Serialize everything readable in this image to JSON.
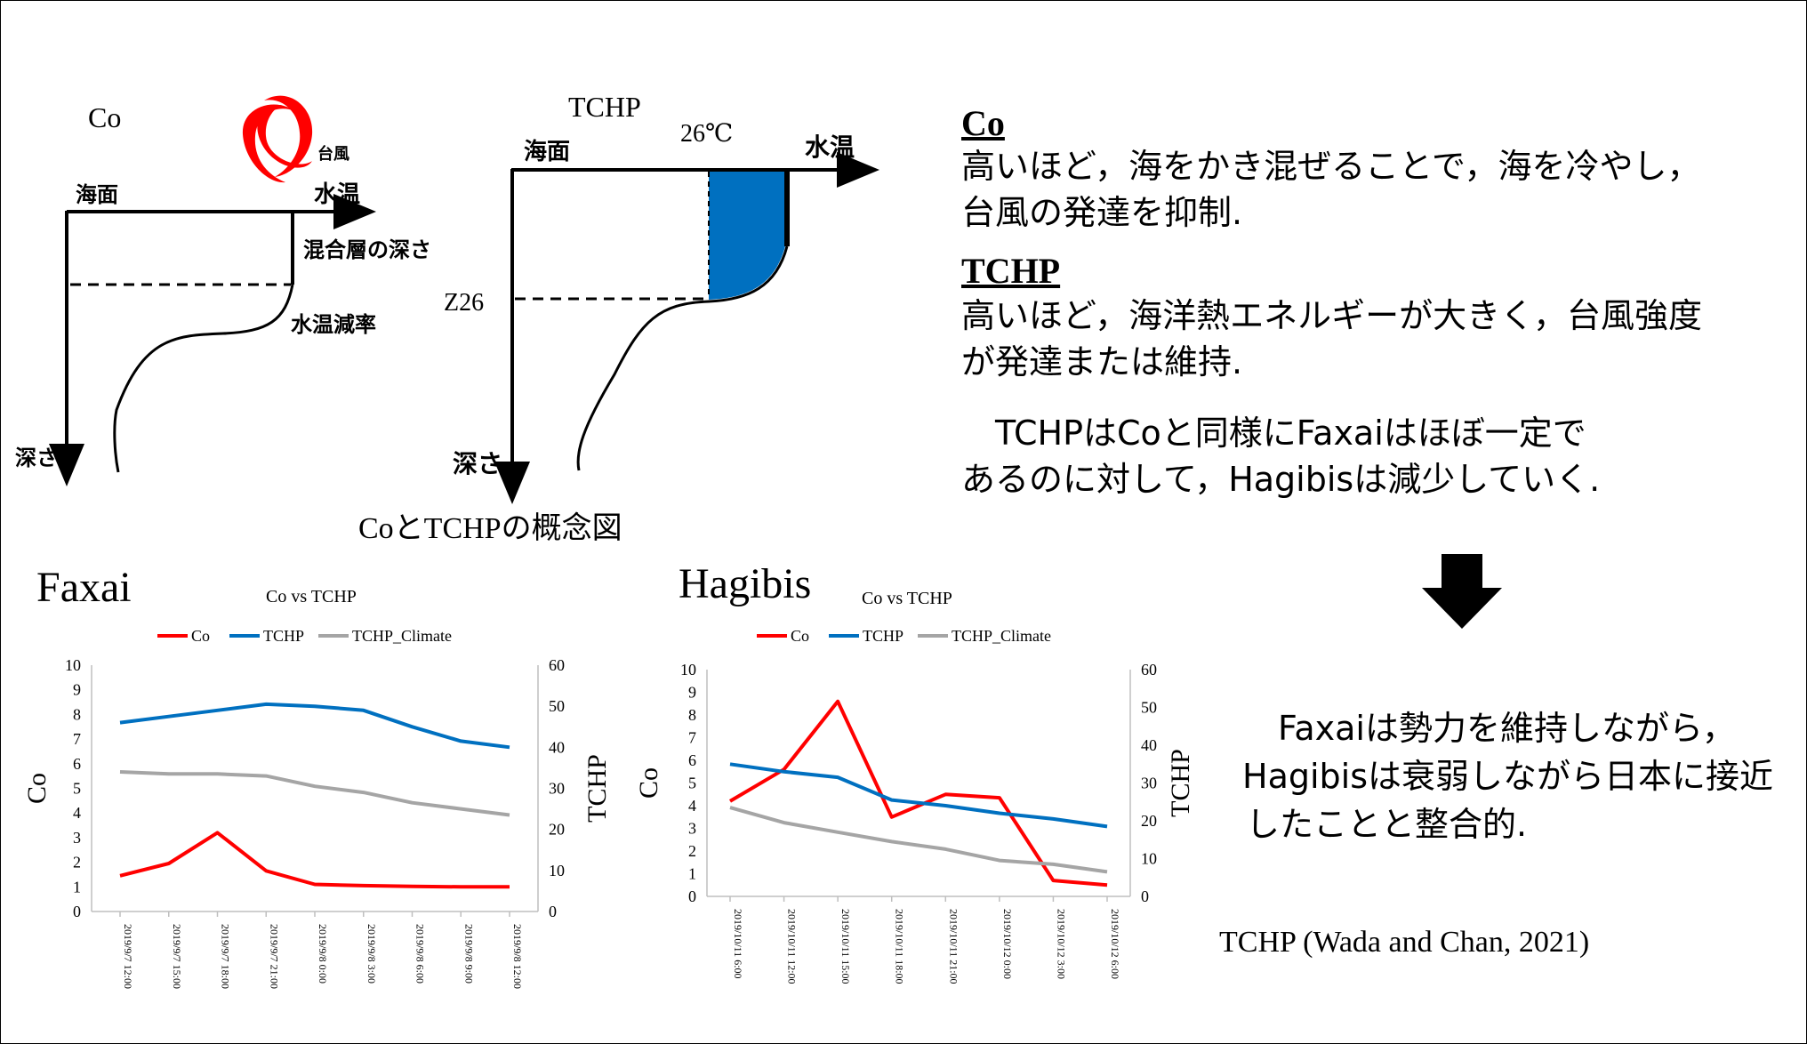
{
  "concept": {
    "co_diagram": {
      "title": "Co",
      "typhoon_label": "台風",
      "sea_surface": "海面",
      "water_temp": "水温",
      "depth": "深さ",
      "mixed_layer": "混合層の深さ",
      "lapse_rate": "水温減率"
    },
    "tchp_diagram": {
      "title": "TCHP",
      "temp26": "26℃",
      "sea_surface": "海面",
      "water_temp": "水温",
      "z26": "Z26",
      "depth": "深さ"
    },
    "caption": "CoとTCHPの概念図"
  },
  "explanation": {
    "co_heading": "Co",
    "co_text_lines": [
      "高いほど，海をかき混ぜることで，海を冷やし，",
      "台風の発達を抑制."
    ],
    "tchp_heading": "TCHP",
    "tchp_text_lines": [
      "高いほど，海洋熱エネルギーが大きく，台風強度",
      "が発達または維持."
    ],
    "note_lines": [
      "　TCHPはCoと同様にFaxaiはほぼ一定で",
      "あるのに対して，Hagibisは減少していく."
    ]
  },
  "conclusion_lines": [
    "　Faxaiは勢力を維持しながら，",
    "Hagibisは衰弱しながら日本に接近",
    "したことと整合的."
  ],
  "citation": "TCHP (Wada and Chan, 2021)",
  "colors": {
    "co": "#ff0000",
    "tchp": "#0070c0",
    "tchp_climate": "#a5a5a5",
    "fill": "#0070c0",
    "typhoon": "#ff0000"
  },
  "chart_data": [
    {
      "type": "line",
      "name": "Faxai",
      "title": "Co vs TCHP",
      "ylabel_left": "Co",
      "ylabel_right": "TCHP",
      "ylim_left": [
        0,
        10
      ],
      "ylim_right": [
        0,
        60
      ],
      "yticks_left": [
        0,
        1,
        2,
        3,
        4,
        5,
        6,
        7,
        8,
        9,
        10
      ],
      "yticks_right": [
        0,
        10,
        20,
        30,
        40,
        50,
        60
      ],
      "legend_position": "top",
      "categories": [
        "2019/9/7 12:00",
        "2019/9/7 15:00",
        "2019/9/7 18:00",
        "2019/9/7 21:00",
        "2019/9/8 0:00",
        "2019/9/8 3:00",
        "2019/9/8 6:00",
        "2019/9/8 9:00",
        "2019/9/8 12:00"
      ],
      "series": [
        {
          "name": "Co",
          "axis": "left",
          "values": [
            1.45,
            1.95,
            3.2,
            1.65,
            1.1,
            1.05,
            1.02,
            1.0,
            1.0
          ]
        },
        {
          "name": "TCHP",
          "axis": "right",
          "values": [
            46,
            47.5,
            49,
            50.5,
            50,
            49,
            45,
            41.5,
            40
          ]
        },
        {
          "name": "TCHP_Climate",
          "axis": "right",
          "values": [
            34,
            33.5,
            33.5,
            33,
            30.5,
            29,
            26.5,
            25,
            23.5
          ]
        }
      ]
    },
    {
      "type": "line",
      "name": "Hagibis",
      "title": "Co vs TCHP",
      "ylabel_left": "Co",
      "ylabel_right": "TCHP",
      "ylim_left": [
        0,
        10
      ],
      "ylim_right": [
        0,
        60
      ],
      "yticks_left": [
        0,
        1,
        2,
        3,
        4,
        5,
        6,
        7,
        8,
        9,
        10
      ],
      "yticks_right": [
        0,
        10,
        20,
        30,
        40,
        50,
        60
      ],
      "legend_position": "top",
      "categories": [
        "2019/10/11 6:00",
        "2019/10/11 12:00",
        "2019/10/11 15:00",
        "2019/10/11 18:00",
        "2019/10/11 21:00",
        "2019/10/12 0:00",
        "2019/10/12 3:00",
        "2019/10/12 6:00"
      ],
      "series": [
        {
          "name": "Co",
          "axis": "left",
          "values": [
            4.2,
            5.6,
            8.6,
            3.5,
            4.5,
            4.35,
            0.7,
            0.5
          ]
        },
        {
          "name": "TCHP",
          "axis": "right",
          "values": [
            35,
            33,
            31.5,
            25.5,
            24,
            22,
            20.5,
            18.5
          ]
        },
        {
          "name": "TCHP_Climate",
          "axis": "right",
          "values": [
            23.5,
            19.5,
            17,
            14.5,
            12.5,
            9.5,
            8.5,
            6.5
          ]
        }
      ]
    }
  ]
}
